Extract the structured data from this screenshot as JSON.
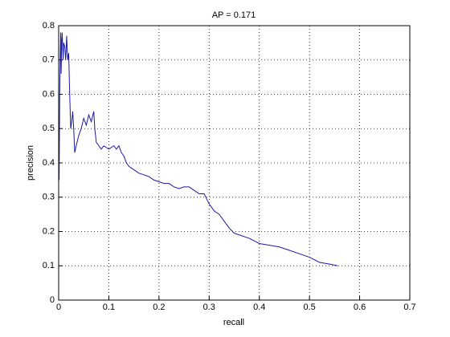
{
  "chart_data": {
    "type": "line",
    "title": "AP = 0.171",
    "x_label": "recall",
    "y_label": "precision",
    "x": [
      0.001,
      0.002,
      0.004,
      0.005,
      0.006,
      0.007,
      0.009,
      0.01,
      0.012,
      0.014,
      0.016,
      0.018,
      0.02,
      0.022,
      0.024,
      0.026,
      0.028,
      0.03,
      0.032,
      0.035,
      0.04,
      0.045,
      0.05,
      0.055,
      0.06,
      0.065,
      0.07,
      0.072,
      0.075,
      0.08,
      0.085,
      0.09,
      0.1,
      0.11,
      0.115,
      0.12,
      0.125,
      0.13,
      0.135,
      0.14,
      0.15,
      0.16,
      0.17,
      0.18,
      0.19,
      0.2,
      0.21,
      0.22,
      0.23,
      0.24,
      0.25,
      0.26,
      0.27,
      0.28,
      0.29,
      0.3,
      0.31,
      0.32,
      0.33,
      0.34,
      0.35,
      0.36,
      0.38,
      0.4,
      0.42,
      0.44,
      0.46,
      0.48,
      0.5,
      0.52,
      0.54,
      0.556
    ],
    "values": [
      0.35,
      0.6,
      0.78,
      0.66,
      0.76,
      0.78,
      0.7,
      0.75,
      0.74,
      0.7,
      0.77,
      0.7,
      0.72,
      0.6,
      0.5,
      0.52,
      0.55,
      0.5,
      0.43,
      0.45,
      0.48,
      0.5,
      0.53,
      0.51,
      0.54,
      0.52,
      0.55,
      0.5,
      0.46,
      0.45,
      0.44,
      0.45,
      0.44,
      0.45,
      0.44,
      0.45,
      0.43,
      0.42,
      0.4,
      0.39,
      0.38,
      0.37,
      0.365,
      0.36,
      0.35,
      0.345,
      0.34,
      0.34,
      0.33,
      0.325,
      0.33,
      0.33,
      0.32,
      0.31,
      0.31,
      0.28,
      0.26,
      0.25,
      0.23,
      0.21,
      0.195,
      0.19,
      0.18,
      0.165,
      0.16,
      0.155,
      0.145,
      0.135,
      0.125,
      0.11,
      0.105,
      0.1
    ],
    "color": "#1a1aa6",
    "xlim": [
      0,
      0.7
    ],
    "xticks": [
      0,
      0.1,
      0.2,
      0.3,
      0.4,
      0.5,
      0.6,
      0.7
    ],
    "ylim": [
      0,
      0.8
    ],
    "yticks": [
      0,
      0.1,
      0.2,
      0.3,
      0.4,
      0.5,
      0.6,
      0.7,
      0.8
    ],
    "grid": true
  }
}
